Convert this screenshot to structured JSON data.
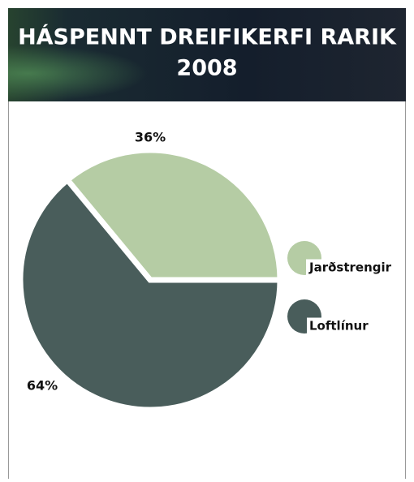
{
  "chart_data": {
    "type": "pie",
    "title": "HÁSPENNT DREIFIKERFI RARIK",
    "subtitle": "2008",
    "categories": [
      "Jarðstrengir",
      "Loftlínur"
    ],
    "values": [
      36,
      64
    ],
    "value_labels": [
      "36%",
      "64%"
    ],
    "colors": [
      "#b5cca4",
      "#495d5b"
    ]
  }
}
